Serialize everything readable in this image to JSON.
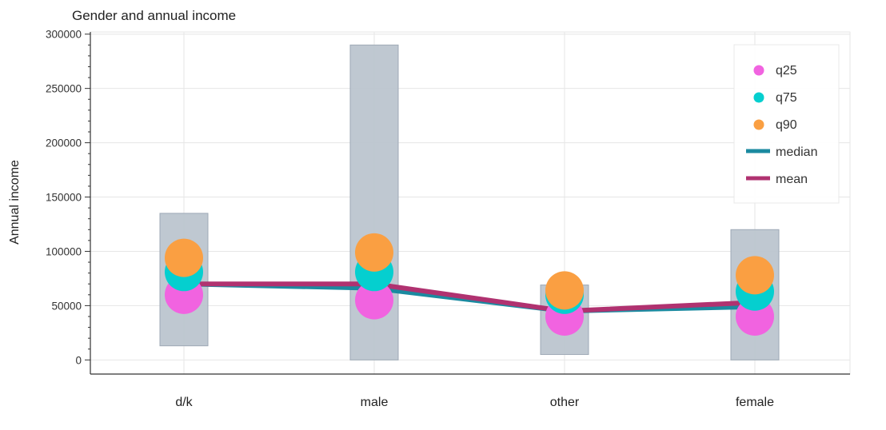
{
  "chart_data": {
    "type": "bar",
    "title": "Gender and annual income",
    "ylabel": "Annual income",
    "xlabel": "",
    "categories": [
      "d/k",
      "male",
      "other",
      "female"
    ],
    "ylim": [
      -13000,
      302000
    ],
    "yticks": [
      0,
      50000,
      100000,
      150000,
      200000,
      250000,
      300000
    ],
    "grid": true,
    "legend_position": "top-right",
    "range_bars": {
      "low": [
        13000,
        0,
        5000,
        0
      ],
      "high": [
        135000,
        290000,
        69000,
        120000
      ],
      "color": "#bcc5cf"
    },
    "series": [
      {
        "name": "q25",
        "kind": "point",
        "color": "#f163e0",
        "values": [
          60000,
          55000,
          40000,
          40000
        ]
      },
      {
        "name": "q75",
        "kind": "point",
        "color": "#05cfcf",
        "values": [
          81000,
          81000,
          60000,
          63000
        ]
      },
      {
        "name": "q90",
        "kind": "point",
        "color": "#fa9f42",
        "values": [
          94000,
          99000,
          64000,
          78000
        ]
      },
      {
        "name": "median",
        "kind": "line",
        "color": "#1b8aa0",
        "values": [
          70000,
          66000,
          45000,
          49000
        ]
      },
      {
        "name": "mean",
        "kind": "line",
        "color": "#b03270",
        "values": [
          70000,
          70000,
          45000,
          53000
        ]
      }
    ]
  }
}
